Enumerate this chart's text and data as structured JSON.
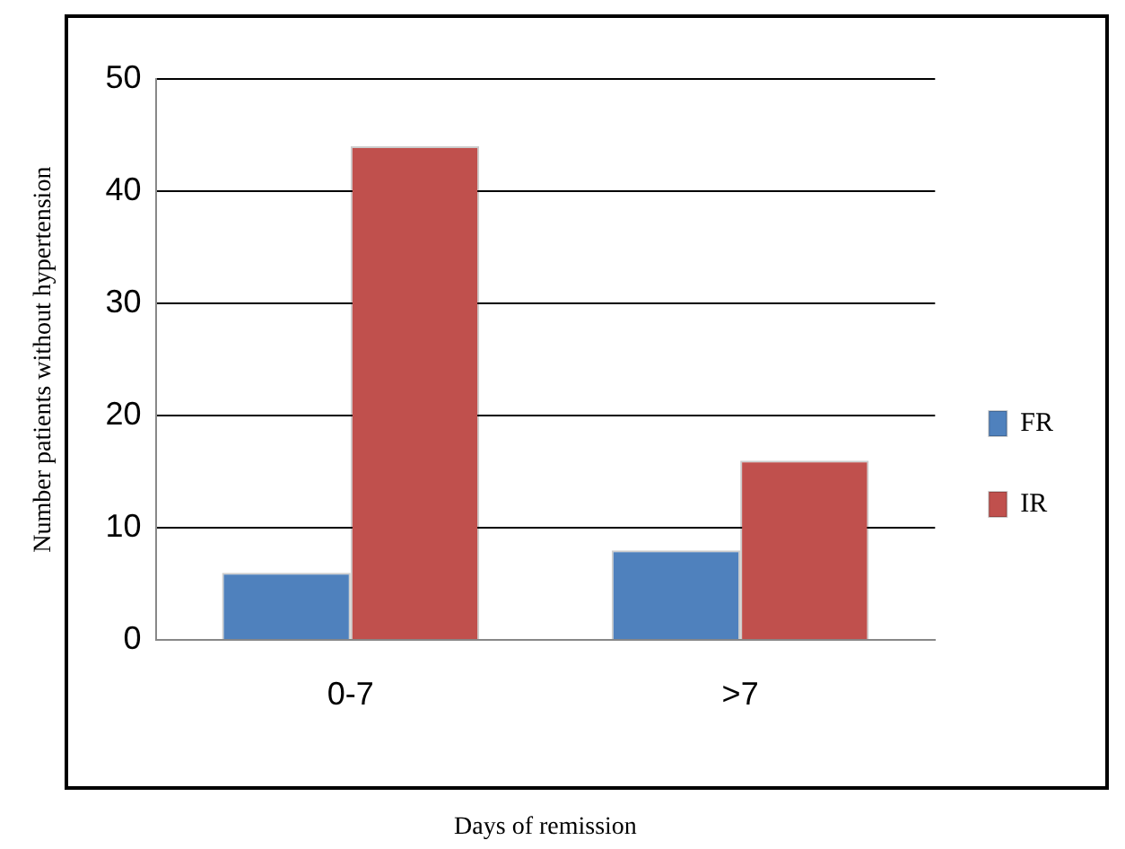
{
  "chart_data": {
    "type": "bar",
    "xlabel": "Days of remission",
    "ylabel": "Number patients without hypertension",
    "categories": [
      "0-7",
      ">7"
    ],
    "series": [
      {
        "name": "FR",
        "color": "#4f81bd",
        "values": [
          6,
          8
        ]
      },
      {
        "name": "IR",
        "color": "#c0504d",
        "values": [
          44,
          16
        ]
      }
    ],
    "ylim": [
      0,
      50
    ],
    "yticks": [
      0,
      10,
      20,
      30,
      40,
      50
    ],
    "grid": "y",
    "legend": "right"
  }
}
